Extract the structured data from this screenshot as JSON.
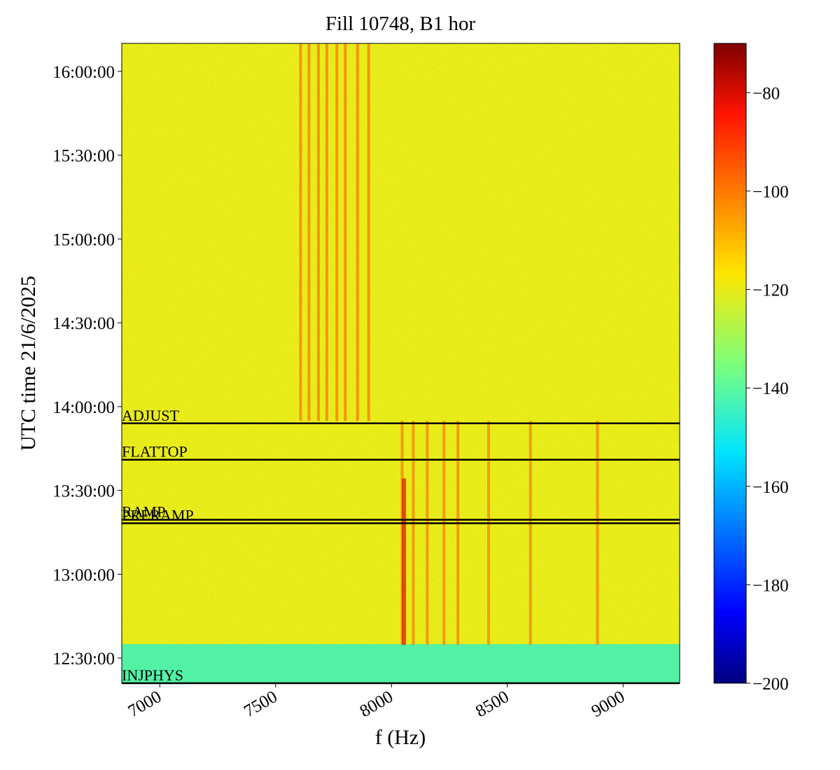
{
  "chart_data": {
    "type": "spectrogram",
    "title": "Fill 10748, B1 hor",
    "x_label": "f (Hz)",
    "y_label": "UTC time 21/6/2025",
    "xlim": [
      6836,
      9244
    ],
    "xticks": [
      7000,
      7500,
      8000,
      8500,
      9000
    ],
    "ylim": [
      44460,
      58200
    ],
    "yticks": [
      {
        "value": 45000,
        "label": "12:30:00"
      },
      {
        "value": 46800,
        "label": "13:00:00"
      },
      {
        "value": 48600,
        "label": "13:30:00"
      },
      {
        "value": 50400,
        "label": "14:00:00"
      },
      {
        "value": 52200,
        "label": "14:30:00"
      },
      {
        "value": 54000,
        "label": "15:00:00"
      },
      {
        "value": 55800,
        "label": "15:30:00"
      },
      {
        "value": 57600,
        "label": "16:00:00"
      }
    ],
    "events": [
      {
        "name": "INJPHYS",
        "time": 44460
      },
      {
        "name": "PRERAMP",
        "time": 47895
      },
      {
        "name": "RAMP",
        "time": 47970
      },
      {
        "name": "FLATTOP",
        "time": 49260
      },
      {
        "name": "ADJUST",
        "time": 50040
      }
    ],
    "event_line_color": "#000000",
    "colormap": "jet",
    "clim": [
      -200,
      -70
    ],
    "cticks": [
      {
        "value": -200,
        "label": "−200"
      },
      {
        "value": -180,
        "label": "−180"
      },
      {
        "value": -160,
        "label": "−160"
      },
      {
        "value": -140,
        "label": "−140"
      },
      {
        "value": -120,
        "label": "−120"
      },
      {
        "value": -100,
        "label": "−100"
      },
      {
        "value": -80,
        "label": "−80"
      }
    ]
  }
}
